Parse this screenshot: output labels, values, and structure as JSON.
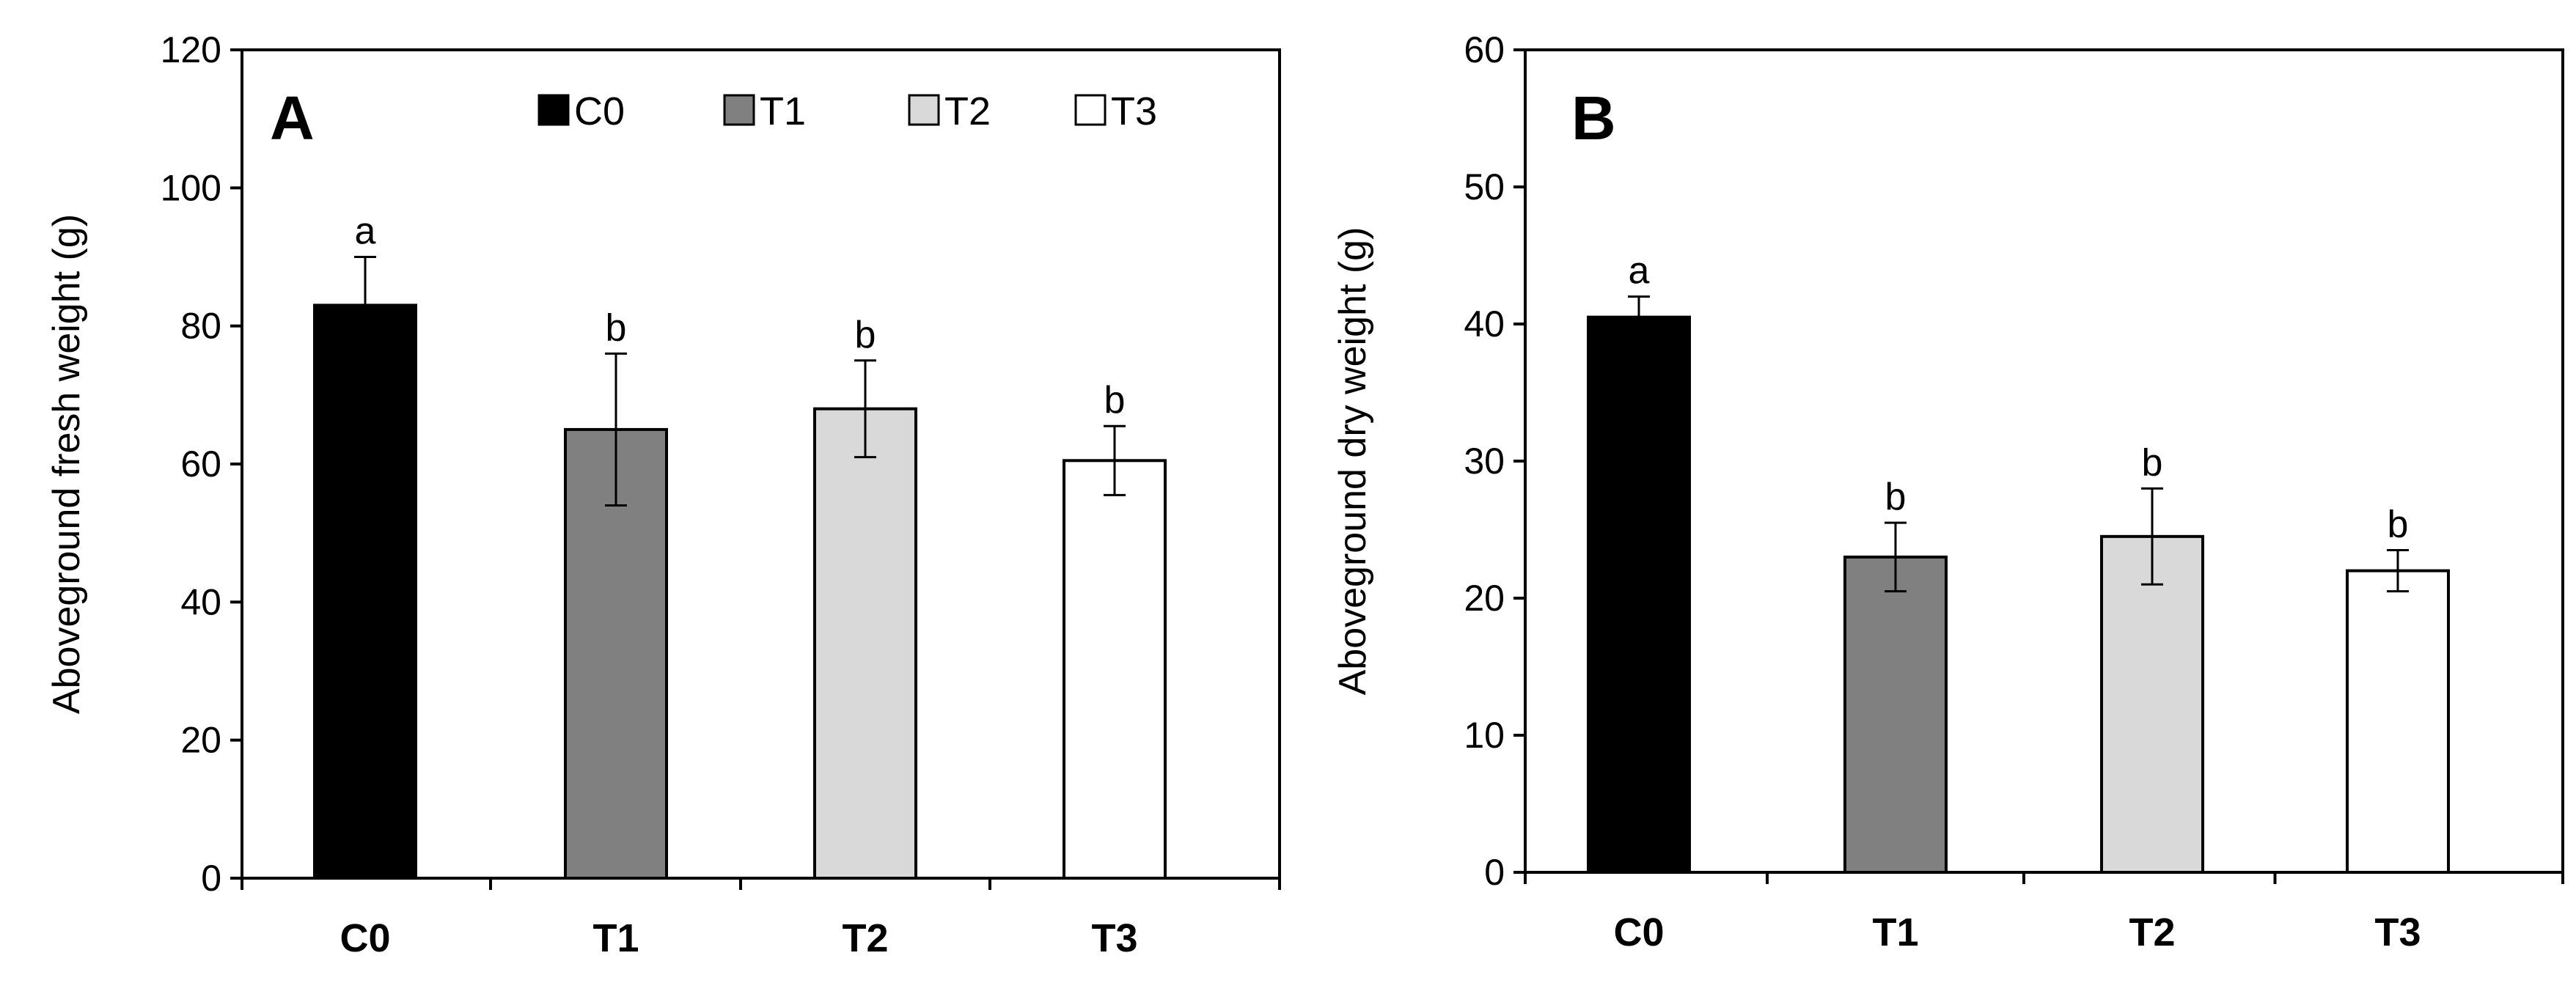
{
  "chart_data": [
    {
      "panel": "A",
      "type": "bar",
      "ylabel": "Aboveground fresh weight (g)",
      "ylim": [
        0,
        120
      ],
      "yticks": [
        0,
        20,
        40,
        60,
        80,
        100,
        120
      ],
      "categories": [
        "C0",
        "T1",
        "T2",
        "T3"
      ],
      "values": [
        83,
        65,
        68,
        60.5
      ],
      "errors": [
        7,
        11,
        7,
        5
      ],
      "significance": [
        "a",
        "b",
        "b",
        "b"
      ],
      "colors": [
        "#000000",
        "#808080",
        "#d9d9d9",
        "#ffffff"
      ],
      "legend": {
        "position": "top-right",
        "entries": [
          {
            "label": "C0",
            "color": "#000000"
          },
          {
            "label": "T1",
            "color": "#808080"
          },
          {
            "label": "T2",
            "color": "#d9d9d9"
          },
          {
            "label": "T3",
            "color": "#ffffff"
          }
        ]
      }
    },
    {
      "panel": "B",
      "type": "bar",
      "ylabel": "Aboveground dry weight (g)",
      "ylim": [
        0,
        60
      ],
      "yticks": [
        0,
        10,
        20,
        30,
        40,
        50,
        60
      ],
      "categories": [
        "C0",
        "T1",
        "T2",
        "T3"
      ],
      "values": [
        40.5,
        23,
        24.5,
        22
      ],
      "errors": [
        1.5,
        2.5,
        3.5,
        1.5
      ],
      "significance": [
        "a",
        "b",
        "b",
        "b"
      ],
      "colors": [
        "#000000",
        "#808080",
        "#d9d9d9",
        "#ffffff"
      ]
    }
  ]
}
